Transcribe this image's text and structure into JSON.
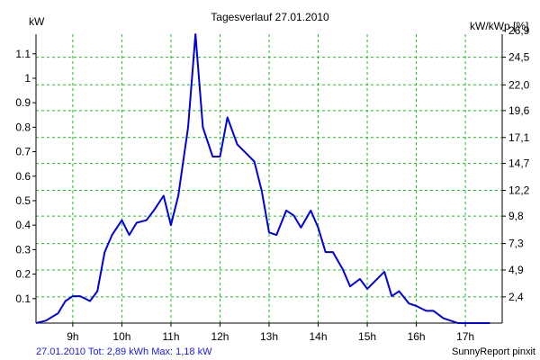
{
  "chart_data": {
    "type": "line",
    "title": "Tagesverlauf 27.01.2010",
    "ylabel_left": "kW",
    "ylabel_right": "kW/kWp [%]",
    "xlim": [
      8.25,
      17.75
    ],
    "ylim": [
      0,
      1.18
    ],
    "grid": true,
    "x_ticks": [
      {
        "value": 9,
        "label": "9h"
      },
      {
        "value": 10,
        "label": "10h"
      },
      {
        "value": 11,
        "label": "11h"
      },
      {
        "value": 12,
        "label": "12h"
      },
      {
        "value": 13,
        "label": "13h"
      },
      {
        "value": 14,
        "label": "14h"
      },
      {
        "value": 15,
        "label": "15h"
      },
      {
        "value": 16,
        "label": "16h"
      },
      {
        "value": 17,
        "label": "17h"
      }
    ],
    "y_ticks_left": [
      {
        "value": 0.1,
        "label": "0.1"
      },
      {
        "value": 0.2,
        "label": "0.2"
      },
      {
        "value": 0.3,
        "label": "0.3"
      },
      {
        "value": 0.4,
        "label": "0.4"
      },
      {
        "value": 0.5,
        "label": "0.5"
      },
      {
        "value": 0.6,
        "label": "0.6"
      },
      {
        "value": 0.7,
        "label": "0.7"
      },
      {
        "value": 0.8,
        "label": "0.8"
      },
      {
        "value": 0.9,
        "label": "0.9"
      },
      {
        "value": 1.0,
        "label": "1"
      },
      {
        "value": 1.1,
        "label": "1.1"
      }
    ],
    "y_ticks_right": [
      {
        "value": 0.107,
        "label": "2,4"
      },
      {
        "value": 0.217,
        "label": "4,9"
      },
      {
        "value": 0.325,
        "label": "7,3"
      },
      {
        "value": 0.437,
        "label": "9,8"
      },
      {
        "value": 0.542,
        "label": "12,2"
      },
      {
        "value": 0.652,
        "label": "14,7"
      },
      {
        "value": 0.758,
        "label": "17,1"
      },
      {
        "value": 0.868,
        "label": "19,6"
      },
      {
        "value": 0.973,
        "label": "22,0"
      },
      {
        "value": 1.086,
        "label": "24,5"
      },
      {
        "value": 1.195,
        "label": "26,9"
      }
    ],
    "series": [
      {
        "color": "#0000dd",
        "x": [
          8.25,
          8.45,
          8.7,
          8.85,
          9.0,
          9.15,
          9.35,
          9.5,
          9.65,
          9.8,
          10.0,
          10.15,
          10.3,
          10.5,
          10.65,
          10.85,
          11.0,
          11.15,
          11.35,
          11.5,
          11.65,
          11.85,
          12.0,
          12.15,
          12.35,
          12.55,
          12.7,
          12.85,
          13.0,
          13.15,
          13.35,
          13.5,
          13.65,
          13.85,
          14.0,
          14.15,
          14.3,
          14.5,
          14.65,
          14.85,
          15.0,
          15.15,
          15.35,
          15.5,
          15.65,
          15.85,
          16.0,
          16.2,
          16.35,
          16.55,
          16.7,
          16.85,
          17.0,
          17.2,
          17.5
        ],
        "y": [
          0.0,
          0.01,
          0.04,
          0.09,
          0.11,
          0.11,
          0.09,
          0.13,
          0.29,
          0.36,
          0.42,
          0.36,
          0.41,
          0.42,
          0.46,
          0.52,
          0.4,
          0.52,
          0.8,
          1.18,
          0.8,
          0.68,
          0.68,
          0.84,
          0.73,
          0.69,
          0.66,
          0.54,
          0.37,
          0.36,
          0.46,
          0.44,
          0.39,
          0.46,
          0.39,
          0.29,
          0.29,
          0.22,
          0.15,
          0.18,
          0.14,
          0.17,
          0.21,
          0.11,
          0.13,
          0.08,
          0.07,
          0.05,
          0.05,
          0.02,
          0.01,
          0.0,
          0.0,
          0.0,
          0.0
        ]
      }
    ]
  },
  "footer": {
    "summary": "27.01.2010 Tot: 2,89 kWh Max: 1,18 kW",
    "credit": "SunnyReport pinxit"
  },
  "colors": {
    "grid": "#22bb22",
    "axis": "#000000",
    "footer_summary": "#1a1ae6"
  }
}
